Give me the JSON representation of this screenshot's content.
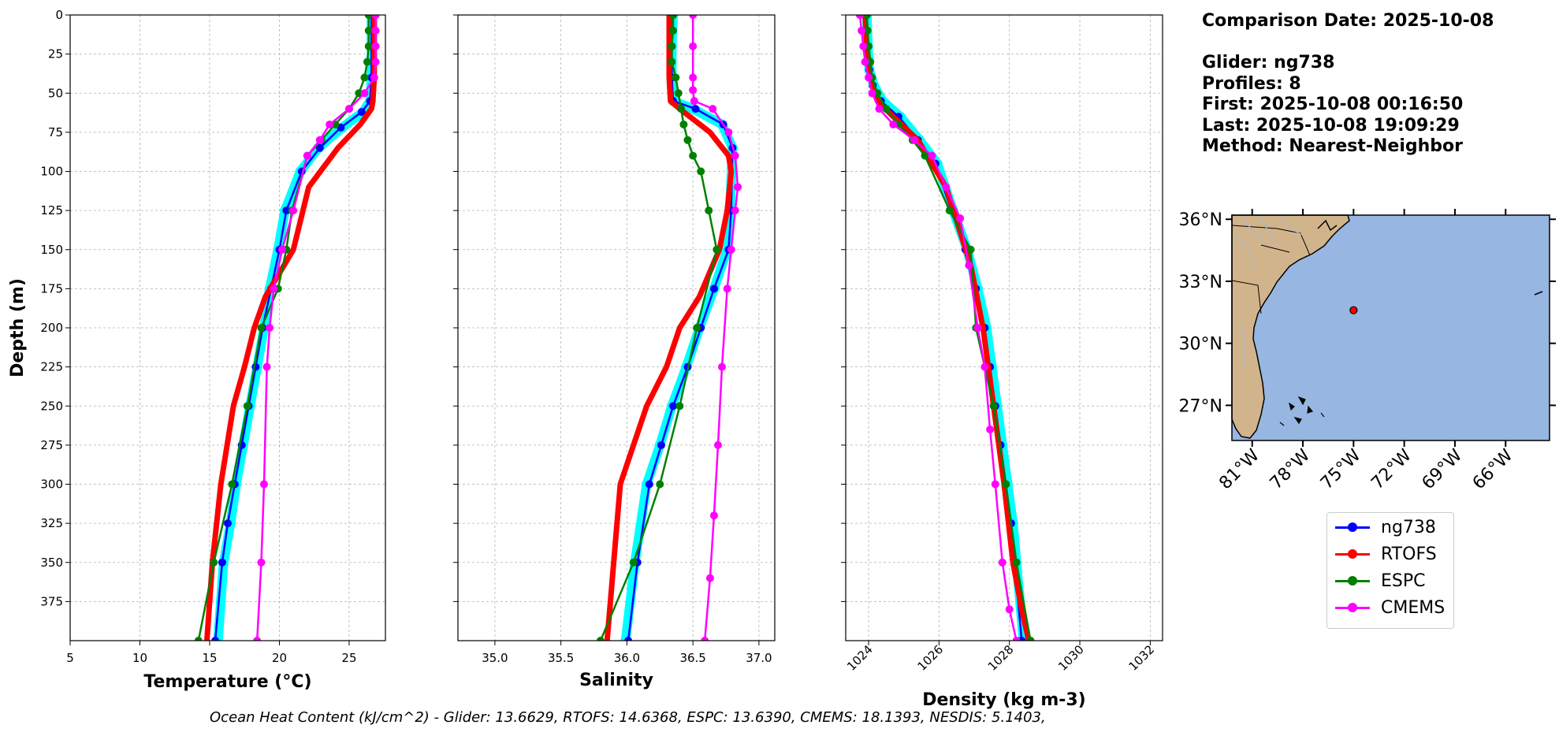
{
  "chart_data": [
    {
      "type": "line",
      "name": "temperature",
      "xlabel": "Temperature (°C)",
      "ylabel": "Depth (m)",
      "xlim": [
        5,
        27.6
      ],
      "ylim": [
        400,
        0
      ],
      "xticks": [
        5,
        10,
        15,
        20,
        25
      ],
      "yticks": [
        0,
        25,
        50,
        75,
        100,
        125,
        150,
        175,
        200,
        225,
        250,
        275,
        300,
        325,
        350,
        375
      ],
      "grid": true,
      "series": [
        {
          "name": "ng738-profiles",
          "color": "#00ffff",
          "x": [
            26.6,
            26.6,
            26.6,
            26.5,
            26.0,
            24.5,
            22.8,
            21.5,
            20.4,
            19.9,
            19.3,
            18.9,
            18.4,
            17.9,
            17.4,
            16.9,
            16.5,
            16.0,
            15.6
          ],
          "y": [
            0,
            20,
            40,
            55,
            62,
            72,
            85,
            100,
            125,
            150,
            175,
            200,
            225,
            250,
            275,
            300,
            325,
            350,
            400
          ]
        },
        {
          "name": "ng738",
          "color": "#0000ff",
          "x": [
            26.6,
            26.6,
            26.6,
            26.5,
            25.9,
            24.4,
            22.9,
            21.6,
            20.5,
            20.0,
            19.4,
            18.8,
            18.3,
            17.8,
            17.3,
            16.8,
            16.3,
            15.9,
            15.4
          ],
          "y": [
            0,
            20,
            40,
            55,
            62,
            72,
            85,
            100,
            125,
            150,
            175,
            200,
            225,
            250,
            275,
            300,
            325,
            350,
            400
          ]
        },
        {
          "name": "RTOFS",
          "color": "#ff0000",
          "x": [
            26.8,
            26.8,
            26.8,
            26.7,
            26.6,
            25.8,
            24.2,
            22.1,
            21.0,
            19.0,
            18.2,
            17.5,
            16.7,
            15.8,
            15.2,
            14.8
          ],
          "y": [
            0,
            20,
            40,
            55,
            60,
            70,
            85,
            110,
            150,
            180,
            200,
            225,
            250,
            300,
            350,
            400
          ]
        },
        {
          "name": "ESPC",
          "color": "#008000",
          "x": [
            26.4,
            26.4,
            26.4,
            26.3,
            26.1,
            25.7,
            25.0,
            24.0,
            23.0,
            22.0,
            20.9,
            20.5,
            19.9,
            18.7,
            17.7,
            16.6,
            15.3,
            14.2
          ],
          "y": [
            0,
            10,
            20,
            30,
            40,
            50,
            60,
            70,
            80,
            90,
            125,
            150,
            175,
            200,
            250,
            300,
            350,
            400
          ]
        },
        {
          "name": "CMEMS",
          "color": "#ff00ff",
          "x": [
            26.9,
            26.9,
            26.9,
            26.9,
            26.8,
            26.1,
            25.0,
            23.6,
            22.9,
            22.0,
            21.0,
            20.2,
            19.6,
            19.3,
            19.1,
            18.9,
            18.7,
            18.4
          ],
          "y": [
            0,
            10,
            20,
            30,
            40,
            50,
            60,
            70,
            80,
            90,
            125,
            150,
            175,
            200,
            225,
            300,
            350,
            400
          ]
        }
      ]
    },
    {
      "type": "line",
      "name": "salinity",
      "xlabel": "Salinity",
      "xlim": [
        34.72,
        37.12
      ],
      "ylim": [
        400,
        0
      ],
      "xticks": [
        35.0,
        35.5,
        36.0,
        36.5,
        37.0
      ],
      "grid": true,
      "series": [
        {
          "name": "ng738-profiles",
          "color": "#00ffff",
          "x": [
            36.35,
            36.34,
            36.34,
            36.35,
            36.5,
            36.72,
            36.8,
            36.78,
            36.76,
            36.66,
            36.55,
            36.45,
            36.34,
            36.25,
            36.15,
            36.06,
            35.99
          ],
          "y": [
            0,
            20,
            40,
            55,
            60,
            70,
            85,
            125,
            150,
            175,
            200,
            225,
            250,
            275,
            300,
            350,
            400
          ]
        },
        {
          "name": "ng738",
          "color": "#0000ff",
          "x": [
            36.35,
            36.34,
            36.34,
            36.35,
            36.52,
            36.73,
            36.8,
            36.79,
            36.77,
            36.66,
            36.56,
            36.46,
            36.35,
            36.26,
            36.17,
            36.08,
            36.01
          ],
          "y": [
            0,
            20,
            40,
            55,
            60,
            70,
            85,
            125,
            150,
            175,
            200,
            225,
            250,
            275,
            300,
            350,
            400
          ]
        },
        {
          "name": "RTOFS",
          "color": "#ff0000",
          "x": [
            36.32,
            36.32,
            36.32,
            36.33,
            36.4,
            36.63,
            36.77,
            36.79,
            36.76,
            36.7,
            36.55,
            36.4,
            36.3,
            36.15,
            35.95,
            35.85
          ],
          "y": [
            0,
            20,
            40,
            55,
            60,
            75,
            90,
            100,
            125,
            150,
            180,
            200,
            225,
            250,
            300,
            400
          ]
        },
        {
          "name": "ESPC",
          "color": "#008000",
          "x": [
            36.35,
            36.35,
            36.34,
            36.34,
            36.37,
            36.39,
            36.41,
            36.43,
            36.46,
            36.5,
            36.56,
            36.62,
            36.68,
            36.53,
            36.4,
            36.25,
            36.05,
            35.8
          ],
          "y": [
            0,
            10,
            20,
            30,
            40,
            50,
            60,
            70,
            80,
            90,
            100,
            125,
            150,
            200,
            250,
            300,
            350,
            400
          ]
        },
        {
          "name": "CMEMS",
          "color": "#ff00ff",
          "x": [
            36.5,
            36.5,
            36.5,
            36.5,
            36.51,
            36.65,
            36.77,
            36.82,
            36.84,
            36.82,
            36.79,
            36.76,
            36.72,
            36.69,
            36.66,
            36.63,
            36.59
          ],
          "y": [
            0,
            20,
            40,
            48,
            55,
            60,
            75,
            90,
            110,
            125,
            150,
            175,
            225,
            275,
            320,
            360,
            400
          ]
        }
      ]
    },
    {
      "type": "line",
      "name": "density",
      "xlabel": "Density (kg m-3)",
      "xlim": [
        1023.35,
        1032.35
      ],
      "ylim": [
        400,
        0
      ],
      "xticks": [
        1024,
        1026,
        1028,
        1030,
        1032
      ],
      "grid": true,
      "series": [
        {
          "name": "ng738-profiles",
          "color": "#00ffff",
          "x": [
            1023.95,
            1023.98,
            1024.02,
            1024.15,
            1024.4,
            1024.9,
            1025.45,
            1025.95,
            1026.4,
            1026.8,
            1027.1,
            1027.35,
            1027.5,
            1027.65,
            1027.8,
            1027.95,
            1028.1,
            1028.4
          ],
          "y": [
            0,
            20,
            35,
            45,
            55,
            65,
            80,
            95,
            125,
            150,
            175,
            200,
            225,
            250,
            275,
            300,
            325,
            400
          ]
        },
        {
          "name": "ng738",
          "color": "#0000ff",
          "x": [
            1023.95,
            1023.98,
            1024.02,
            1024.12,
            1024.35,
            1024.85,
            1025.4,
            1025.9,
            1026.35,
            1026.75,
            1027.05,
            1027.3,
            1027.45,
            1027.6,
            1027.75,
            1027.9,
            1028.05,
            1028.35
          ],
          "y": [
            0,
            20,
            35,
            45,
            55,
            65,
            80,
            95,
            125,
            150,
            175,
            200,
            225,
            250,
            275,
            300,
            325,
            400
          ]
        },
        {
          "name": "RTOFS",
          "color": "#ff0000",
          "x": [
            1023.9,
            1023.95,
            1024.05,
            1024.25,
            1024.7,
            1025.4,
            1026.2,
            1026.9,
            1027.25,
            1027.55,
            1027.85,
            1028.1,
            1028.35,
            1028.55
          ],
          "y": [
            0,
            20,
            40,
            55,
            65,
            80,
            110,
            160,
            200,
            250,
            300,
            350,
            380,
            400
          ]
        },
        {
          "name": "ESPC",
          "color": "#008000",
          "x": [
            1023.95,
            1023.97,
            1024.0,
            1024.05,
            1024.1,
            1024.25,
            1024.5,
            1024.85,
            1025.25,
            1025.6,
            1026.3,
            1026.9,
            1027.05,
            1027.55,
            1027.9,
            1028.2,
            1028.6
          ],
          "y": [
            0,
            10,
            20,
            30,
            40,
            50,
            60,
            70,
            80,
            90,
            125,
            150,
            200,
            250,
            300,
            350,
            400
          ]
        },
        {
          "name": "CMEMS",
          "color": "#ff00ff",
          "x": [
            1023.75,
            1023.8,
            1023.85,
            1023.9,
            1024.0,
            1024.1,
            1024.3,
            1024.7,
            1025.3,
            1025.8,
            1026.2,
            1026.6,
            1026.85,
            1027.1,
            1027.3,
            1027.45,
            1027.6,
            1027.8,
            1028.0,
            1028.2
          ],
          "y": [
            0,
            10,
            20,
            30,
            40,
            50,
            60,
            70,
            80,
            90,
            110,
            130,
            160,
            200,
            225,
            265,
            300,
            350,
            380,
            400
          ]
        }
      ]
    }
  ],
  "info": {
    "comparison_date": "Comparison Date: 2025-10-08",
    "glider": "Glider: ng738",
    "profiles": "Profiles: 8",
    "first": "First: 2025-10-08 00:16:50",
    "last": "Last: 2025-10-08 19:09:29",
    "method": "Method: Nearest-Neighbor"
  },
  "map": {
    "lat_labels": [
      "36°N",
      "33°N",
      "30°N",
      "27°N"
    ],
    "lat_values": [
      36,
      33,
      30,
      27
    ],
    "lon_labels": [
      "81°W",
      "78°W",
      "75°W",
      "72°W",
      "69°W",
      "66°W"
    ],
    "lon_values": [
      -81,
      -78,
      -75,
      -72,
      -69,
      -66
    ],
    "glider_position": {
      "lon": -75.0,
      "lat": 31.6
    },
    "ocean_color": "#97b6e1",
    "land_color": "#d2b48c"
  },
  "legend": [
    {
      "label": "ng738",
      "color": "#0000ff"
    },
    {
      "label": "RTOFS",
      "color": "#ff0000"
    },
    {
      "label": "ESPC",
      "color": "#008000"
    },
    {
      "label": "CMEMS",
      "color": "#ff00ff"
    }
  ],
  "ohc": {
    "text": "Ocean Heat Content (kJ/cm^2) - Glider: 13.6629,  RTOFS: 14.6368,  ESPC: 13.6390,  CMEMS: 18.1393,  NESDIS: 5.1403,"
  }
}
